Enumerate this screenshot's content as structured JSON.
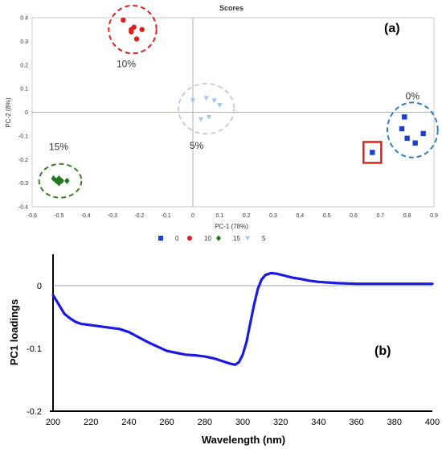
{
  "chart_data": [
    {
      "type": "scatter",
      "panel_label": "(a)",
      "title": "Scores",
      "xlabel": "PC-1 (78%)",
      "ylabel": "PC-2 (8%)",
      "xlim": [
        -0.6,
        0.9
      ],
      "ylim": [
        -0.4,
        0.4
      ],
      "x_ticks": [
        "-0.6",
        "-0.5",
        "-0.4",
        "-0.3",
        "-0.2",
        "-0.1",
        "0",
        "0.1",
        "0.2",
        "0.3",
        "0.4",
        "0.5",
        "0.6",
        "0.7",
        "0.8",
        "0.9"
      ],
      "y_ticks": [
        "-0.4",
        "-0.3",
        "-0.2",
        "-0.1",
        "0",
        "0.1",
        "0.2",
        "0.3",
        "0.4"
      ],
      "legend_position": "bottom",
      "series": [
        {
          "name": "0",
          "marker": "square",
          "color": "#1d3fd0",
          "annotation": "0%",
          "ellipse_color": "#2f7fc2",
          "points": [
            [
              0.79,
              -0.02
            ],
            [
              0.78,
              -0.07
            ],
            [
              0.8,
              -0.11
            ],
            [
              0.83,
              -0.13
            ],
            [
              0.86,
              -0.09
            ],
            [
              0.67,
              -0.17
            ]
          ]
        },
        {
          "name": "10",
          "marker": "circle",
          "color": "#e02020",
          "annotation": "10%",
          "ellipse_color": "#e02020",
          "points": [
            [
              -0.26,
              0.39
            ],
            [
              -0.23,
              0.35
            ],
            [
              -0.22,
              0.36
            ],
            [
              -0.19,
              0.35
            ],
            [
              -0.21,
              0.31
            ],
            [
              -0.23,
              0.34
            ]
          ]
        },
        {
          "name": "15",
          "marker": "diamond",
          "color": "#1f7a1f",
          "annotation": "15%",
          "ellipse_color": "#3f7a2a",
          "points": [
            [
              -0.52,
              -0.28
            ],
            [
              -0.51,
              -0.29
            ],
            [
              -0.5,
              -0.3
            ],
            [
              -0.49,
              -0.29
            ],
            [
              -0.47,
              -0.29
            ],
            [
              -0.5,
              -0.28
            ]
          ]
        },
        {
          "name": "5",
          "marker": "triangle-down",
          "color": "#9ec6ea",
          "annotation": "5%",
          "ellipse_color": "#c9cde0",
          "points": [
            [
              0.0,
              0.05
            ],
            [
              0.05,
              0.06
            ],
            [
              0.08,
              0.05
            ],
            [
              0.1,
              0.03
            ],
            [
              0.03,
              -0.03
            ],
            [
              0.06,
              -0.02
            ]
          ]
        }
      ],
      "highlighted_point": [
        0.67,
        -0.17
      ],
      "highlight_color": "#e02020"
    },
    {
      "type": "line",
      "panel_label": "(b)",
      "xlabel": "Wavelength (nm)",
      "ylabel": "PC1 loadings",
      "xlim": [
        200,
        400
      ],
      "ylim": [
        -0.2,
        0.05
      ],
      "x_ticks": [
        "200",
        "220",
        "240",
        "260",
        "280",
        "300",
        "320",
        "340",
        "360",
        "380",
        "400"
      ],
      "y_ticks": [
        "0",
        "-0.1",
        "-0.2"
      ],
      "series": [
        {
          "color": "#1a1ae0",
          "x": [
            200,
            203,
            206,
            209,
            212,
            215,
            220,
            225,
            230,
            235,
            240,
            245,
            250,
            255,
            260,
            265,
            270,
            275,
            280,
            285,
            290,
            293,
            296,
            298,
            300,
            302,
            304,
            306,
            308,
            310,
            312,
            315,
            318,
            322,
            326,
            330,
            335,
            340,
            345,
            350,
            360,
            370,
            380,
            390,
            400
          ],
          "y": [
            -0.015,
            -0.03,
            -0.045,
            -0.052,
            -0.058,
            -0.061,
            -0.063,
            -0.065,
            -0.067,
            -0.069,
            -0.074,
            -0.082,
            -0.09,
            -0.097,
            -0.104,
            -0.107,
            -0.11,
            -0.111,
            -0.113,
            -0.116,
            -0.121,
            -0.124,
            -0.126,
            -0.122,
            -0.11,
            -0.09,
            -0.06,
            -0.03,
            -0.005,
            0.01,
            0.017,
            0.02,
            0.019,
            0.016,
            0.013,
            0.011,
            0.008,
            0.006,
            0.005,
            0.004,
            0.003,
            0.003,
            0.003,
            0.003,
            0.003
          ]
        }
      ]
    }
  ]
}
